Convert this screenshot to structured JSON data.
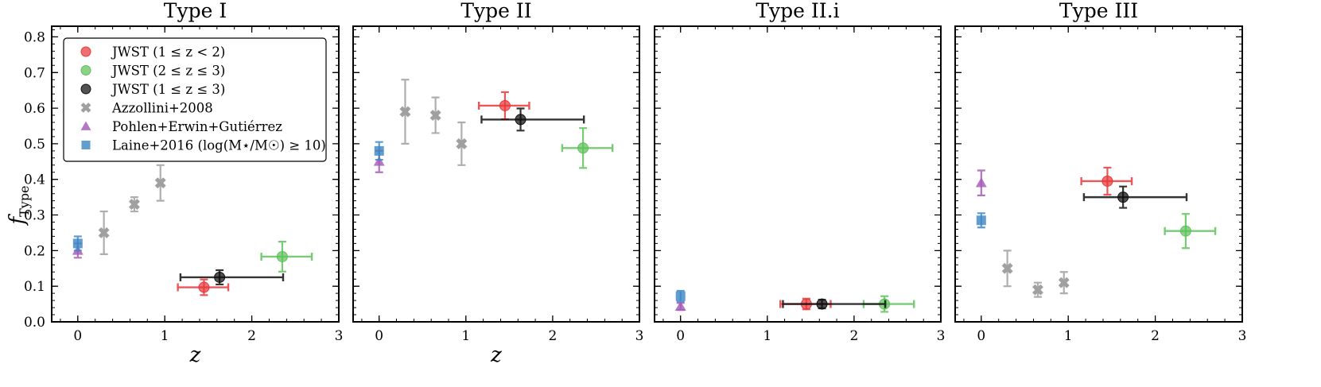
{
  "figure": {
    "ylabel": "f",
    "ylabel_sub": "Type"
  },
  "colors": {
    "jwst_low": "#e8393c",
    "jwst_high": "#5fc25c",
    "jwst_all": "#111111",
    "azzollini": "#a0a0a0",
    "pohlen": "#a45ab8",
    "laine": "#3f88c4"
  },
  "legend": [
    {
      "key": "jwst_low",
      "marker": "circle",
      "label": "JWST (1 ≤ z < 2)"
    },
    {
      "key": "jwst_high",
      "marker": "circle",
      "label": "JWST (2 ≤ z ≤ 3)"
    },
    {
      "key": "jwst_all",
      "marker": "circle",
      "label": "JWST (1 ≤ z ≤ 3)"
    },
    {
      "key": "azzollini",
      "marker": "cross",
      "label": "Azzollini+2008"
    },
    {
      "key": "pohlen",
      "marker": "triangle",
      "label": "Pohlen+Erwin+Gutiérrez"
    },
    {
      "key": "laine",
      "marker": "square",
      "label": "Laine+2016 (log(M⋆/M☉) ≥ 10)"
    }
  ],
  "chart_data": [
    {
      "type": "scatter",
      "title": "Type I",
      "xlabel": "z",
      "ylabel": "f_Type",
      "xlim": [
        -0.3,
        3.0
      ],
      "ylim": [
        0.0,
        0.83
      ],
      "xticks": [
        "0",
        "1",
        "2",
        "3"
      ],
      "yticks": [
        "0.0",
        "0.1",
        "0.2",
        "0.3",
        "0.4",
        "0.5",
        "0.6",
        "0.7",
        "0.8"
      ],
      "show_legend": true,
      "series": [
        {
          "key": "azzollini",
          "marker": "cross",
          "points": [
            {
              "x": 0.3,
              "y": 0.25,
              "yerr": [
                0.06,
                0.06
              ]
            },
            {
              "x": 0.65,
              "y": 0.33,
              "yerr": [
                0.02,
                0.02
              ]
            },
            {
              "x": 0.95,
              "y": 0.39,
              "yerr": [
                0.05,
                0.05
              ]
            }
          ]
        },
        {
          "key": "pohlen",
          "marker": "triangle",
          "points": [
            {
              "x": 0.0,
              "y": 0.2,
              "yerr": [
                0.02,
                0.02
              ]
            }
          ]
        },
        {
          "key": "laine",
          "marker": "square",
          "points": [
            {
              "x": 0.0,
              "y": 0.22,
              "yerr": [
                0.02,
                0.02
              ]
            }
          ]
        },
        {
          "key": "jwst_low",
          "marker": "circle",
          "points": [
            {
              "x": 1.45,
              "y": 0.097,
              "xerr": [
                0.3,
                0.28
              ],
              "yerr": [
                0.022,
                0.022
              ]
            }
          ]
        },
        {
          "key": "jwst_high",
          "marker": "circle",
          "points": [
            {
              "x": 2.35,
              "y": 0.183,
              "xerr": [
                0.24,
                0.34
              ],
              "yerr": [
                0.042,
                0.042
              ]
            }
          ]
        },
        {
          "key": "jwst_all",
          "marker": "circle",
          "points": [
            {
              "x": 1.63,
              "y": 0.125,
              "xerr": [
                0.45,
                0.73
              ],
              "yerr": [
                0.02,
                0.02
              ]
            }
          ]
        }
      ]
    },
    {
      "type": "scatter",
      "title": "Type II",
      "xlabel": "z",
      "ylabel": "",
      "xlim": [
        -0.3,
        3.0
      ],
      "ylim": [
        0.0,
        0.83
      ],
      "xticks": [
        "0",
        "1",
        "2",
        "3"
      ],
      "yticks": [],
      "show_legend": false,
      "series": [
        {
          "key": "azzollini",
          "marker": "cross",
          "points": [
            {
              "x": 0.3,
              "y": 0.59,
              "yerr": [
                0.09,
                0.09
              ]
            },
            {
              "x": 0.65,
              "y": 0.58,
              "yerr": [
                0.05,
                0.05
              ]
            },
            {
              "x": 0.95,
              "y": 0.5,
              "yerr": [
                0.06,
                0.06
              ]
            }
          ]
        },
        {
          "key": "pohlen",
          "marker": "triangle",
          "points": [
            {
              "x": 0.0,
              "y": 0.45,
              "yerr": [
                0.03,
                0.03
              ]
            }
          ]
        },
        {
          "key": "laine",
          "marker": "square",
          "points": [
            {
              "x": 0.0,
              "y": 0.48,
              "yerr": [
                0.025,
                0.025
              ]
            }
          ]
        },
        {
          "key": "jwst_low",
          "marker": "circle",
          "points": [
            {
              "x": 1.45,
              "y": 0.607,
              "xerr": [
                0.3,
                0.28
              ],
              "yerr": [
                0.038,
                0.038
              ]
            }
          ]
        },
        {
          "key": "jwst_high",
          "marker": "circle",
          "points": [
            {
              "x": 2.35,
              "y": 0.488,
              "xerr": [
                0.24,
                0.34
              ],
              "yerr": [
                0.056,
                0.056
              ]
            }
          ]
        },
        {
          "key": "jwst_all",
          "marker": "circle",
          "points": [
            {
              "x": 1.63,
              "y": 0.568,
              "xerr": [
                0.45,
                0.73
              ],
              "yerr": [
                0.031,
                0.031
              ]
            }
          ]
        }
      ]
    },
    {
      "type": "scatter",
      "title": "Type II.i",
      "xlabel": "",
      "ylabel": "",
      "xlim": [
        -0.3,
        3.0
      ],
      "ylim": [
        0.0,
        0.83
      ],
      "xticks": [
        "0",
        "1",
        "2",
        "3"
      ],
      "yticks": [],
      "show_legend": false,
      "series": [
        {
          "key": "pohlen",
          "marker": "triangle",
          "points": [
            {
              "x": 0.0,
              "y": 0.043,
              "yerr": [
                0.01,
                0.01
              ]
            }
          ]
        },
        {
          "key": "laine",
          "marker": "square",
          "points": [
            {
              "x": 0.0,
              "y": 0.072,
              "yerr": [
                0.015,
                0.015
              ]
            }
          ]
        },
        {
          "key": "jwst_low",
          "marker": "circle",
          "points": [
            {
              "x": 1.45,
              "y": 0.05,
              "xerr": [
                0.3,
                0.28
              ],
              "yerr": [
                0.015,
                0.015
              ]
            }
          ]
        },
        {
          "key": "jwst_high",
          "marker": "circle",
          "points": [
            {
              "x": 2.35,
              "y": 0.05,
              "xerr": [
                0.24,
                0.34
              ],
              "yerr": [
                0.022,
                0.022
              ]
            }
          ]
        },
        {
          "key": "jwst_all",
          "marker": "circle",
          "points": [
            {
              "x": 1.63,
              "y": 0.05,
              "xerr": [
                0.45,
                0.73
              ],
              "yerr": [
                0.012,
                0.012
              ]
            }
          ]
        }
      ]
    },
    {
      "type": "scatter",
      "title": "Type III",
      "xlabel": "",
      "ylabel": "",
      "xlim": [
        -0.3,
        3.0
      ],
      "ylim": [
        0.0,
        0.83
      ],
      "xticks": [
        "0",
        "1",
        "2",
        "3"
      ],
      "yticks": [],
      "show_legend": false,
      "series": [
        {
          "key": "azzollini",
          "marker": "cross",
          "points": [
            {
              "x": 0.3,
              "y": 0.15,
              "yerr": [
                0.05,
                0.05
              ]
            },
            {
              "x": 0.65,
              "y": 0.09,
              "yerr": [
                0.02,
                0.02
              ]
            },
            {
              "x": 0.95,
              "y": 0.11,
              "yerr": [
                0.03,
                0.03
              ]
            }
          ]
        },
        {
          "key": "pohlen",
          "marker": "triangle",
          "points": [
            {
              "x": 0.0,
              "y": 0.39,
              "yerr": [
                0.035,
                0.035
              ]
            }
          ]
        },
        {
          "key": "laine",
          "marker": "square",
          "points": [
            {
              "x": 0.0,
              "y": 0.285,
              "yerr": [
                0.02,
                0.02
              ]
            }
          ]
        },
        {
          "key": "jwst_low",
          "marker": "circle",
          "points": [
            {
              "x": 1.45,
              "y": 0.395,
              "xerr": [
                0.3,
                0.28
              ],
              "yerr": [
                0.038,
                0.038
              ]
            }
          ]
        },
        {
          "key": "jwst_high",
          "marker": "circle",
          "points": [
            {
              "x": 2.35,
              "y": 0.255,
              "xerr": [
                0.24,
                0.34
              ],
              "yerr": [
                0.048,
                0.048
              ]
            }
          ]
        },
        {
          "key": "jwst_all",
          "marker": "circle",
          "points": [
            {
              "x": 1.63,
              "y": 0.35,
              "xerr": [
                0.45,
                0.73
              ],
              "yerr": [
                0.03,
                0.03
              ]
            }
          ]
        }
      ]
    }
  ]
}
